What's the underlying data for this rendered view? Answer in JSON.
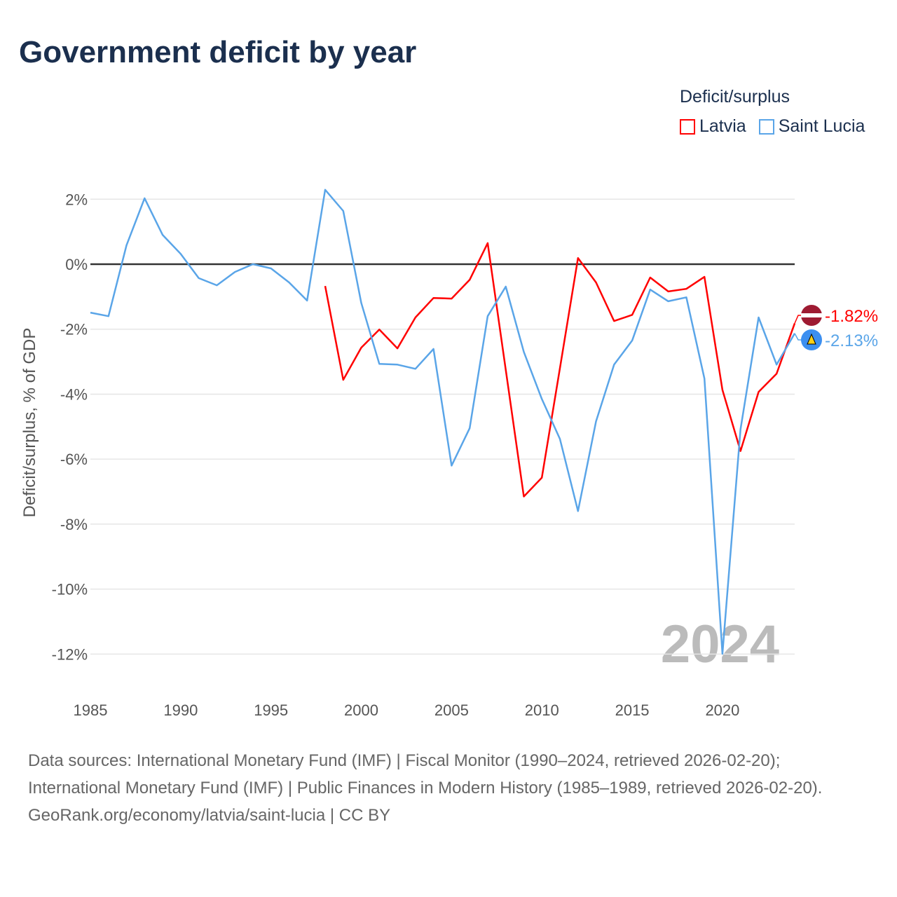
{
  "title": "Government deficit by year",
  "legend": {
    "title": "Deficit/surplus",
    "items": [
      "Latvia",
      "Saint Lucia"
    ]
  },
  "footer": {
    "line1": "Data sources: International Monetary Fund (IMF) | Fiscal Monitor (1990–2024, retrieved 2026-02-20); International Monetary Fund (IMF) | Public Finances in Modern History (1985–1989, retrieved 2026-02-20).",
    "line2": "GeoRank.org/economy/latvia/saint-lucia | CC BY"
  },
  "chart_data": {
    "type": "line",
    "title": "Government deficit by year",
    "ylabel": "Deficit/surplus, % of GDP",
    "xlabel": "",
    "xlim": [
      1985,
      2024
    ],
    "ylim": [
      -12,
      2
    ],
    "x_ticks": [
      1985,
      1990,
      1995,
      2000,
      2005,
      2010,
      2015,
      2020
    ],
    "y_ticks": [
      2,
      0,
      -2,
      -4,
      -6,
      -8,
      -10,
      -12
    ],
    "y_tick_labels": [
      "2%",
      "0%",
      "-2%",
      "-4%",
      "-6%",
      "-8%",
      "-10%",
      "-12%"
    ],
    "year_watermark": "2024",
    "series": [
      {
        "name": "Latvia",
        "color": "#ff0000",
        "end_label": "-1.82%",
        "start": 1998,
        "values": [
          -0.67,
          -3.56,
          -2.57,
          -2.01,
          -2.59,
          -1.64,
          -1.04,
          -1.06,
          -0.48,
          0.65,
          -3.25,
          -7.15,
          -6.57,
          -3.2,
          0.19,
          -0.56,
          -1.75,
          -1.56,
          -0.41,
          -0.84,
          -0.76,
          -0.39,
          -3.87,
          -5.75,
          -3.93,
          -3.37,
          -1.82
        ]
      },
      {
        "name": "Saint Lucia",
        "color": "#5aa5e8",
        "end_label": "-2.13%",
        "start": 1985,
        "values": [
          -1.49,
          -1.6,
          0.58,
          2.03,
          0.9,
          0.32,
          -0.43,
          -0.65,
          -0.24,
          0.0,
          -0.13,
          -0.56,
          -1.12,
          2.29,
          1.64,
          -1.19,
          -3.07,
          -3.09,
          -3.22,
          -2.61,
          -6.2,
          -5.05,
          -1.6,
          -0.69,
          -2.7,
          -4.15,
          -5.38,
          -7.6,
          -4.84,
          -3.09,
          -2.35,
          -0.78,
          -1.14,
          -1.02,
          -3.52,
          -11.99,
          -5.08,
          -1.64,
          -3.09,
          -2.13
        ]
      }
    ]
  }
}
